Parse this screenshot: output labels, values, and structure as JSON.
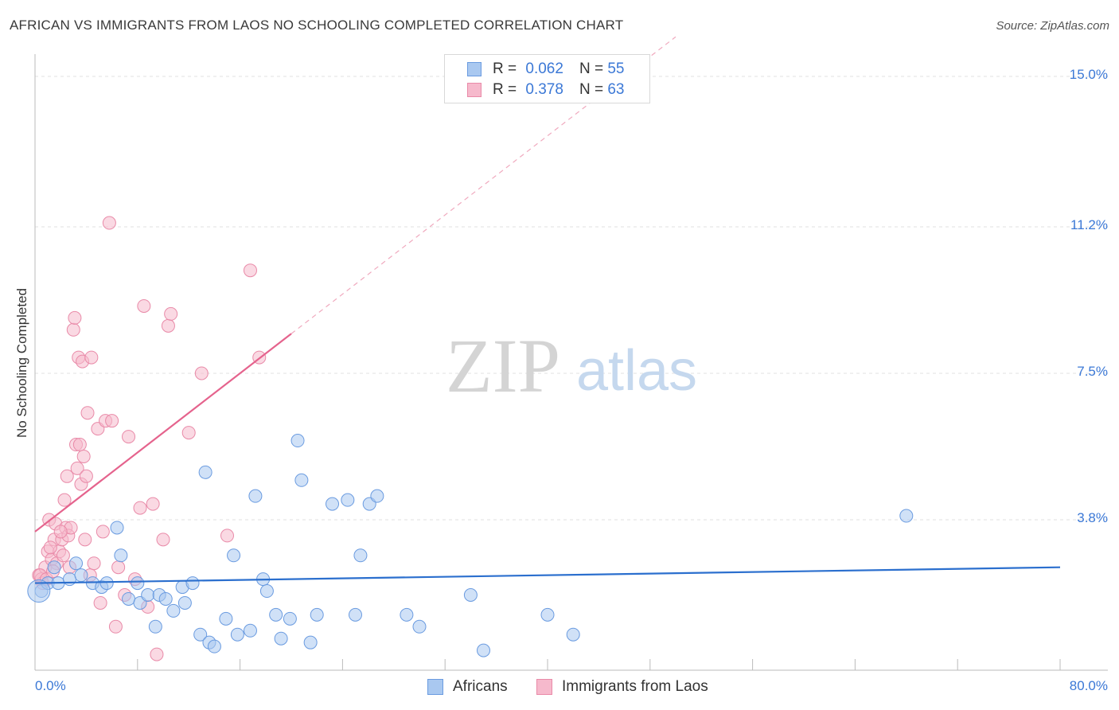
{
  "title": "AFRICAN VS IMMIGRANTS FROM LAOS NO SCHOOLING COMPLETED CORRELATION CHART",
  "source": "Source: ZipAtlas.com",
  "watermark": {
    "zip": "ZIP",
    "atlas": "atlas"
  },
  "legend": {
    "africans": {
      "r_label": "R =",
      "r_value": "0.062",
      "n_label": "N =",
      "n_value": "55"
    },
    "laos": {
      "r_label": "R =",
      "r_value": "0.378",
      "n_label": "N =",
      "n_value": "63"
    }
  },
  "colors": {
    "africans_fill": "#a9c8f0",
    "africans_stroke": "#6a9be0",
    "africans_line": "#2b6fce",
    "laos_fill": "#f6b9cc",
    "laos_stroke": "#e98aa8",
    "laos_line": "#e5638d",
    "tick_text": "#3b78d6",
    "grid": "#e2e2e2"
  },
  "chart_data": {
    "type": "scatter",
    "xlabel": "",
    "ylabel": "No Schooling Completed",
    "xlim": [
      0,
      80
    ],
    "ylim": [
      0,
      15
    ],
    "x_tick_labels": [
      "0.0%",
      "80.0%"
    ],
    "y_tick_labels": [
      "3.8%",
      "7.5%",
      "11.2%",
      "15.0%"
    ],
    "y_ticks": [
      3.8,
      7.5,
      11.2,
      15.0
    ],
    "grid": true,
    "series": [
      {
        "name": "Africans",
        "trend": {
          "x0": 0,
          "y0": 2.2,
          "x1": 80,
          "y1": 2.6
        },
        "points": [
          [
            0.5,
            2.0
          ],
          [
            1.0,
            2.2
          ],
          [
            1.5,
            2.6
          ],
          [
            1.8,
            2.2
          ],
          [
            2.7,
            2.3
          ],
          [
            3.2,
            2.7
          ],
          [
            3.6,
            2.4
          ],
          [
            4.5,
            2.2
          ],
          [
            5.2,
            2.1
          ],
          [
            5.6,
            2.2
          ],
          [
            6.4,
            3.6
          ],
          [
            6.7,
            2.9
          ],
          [
            7.3,
            1.8
          ],
          [
            8.0,
            2.2
          ],
          [
            8.2,
            1.7
          ],
          [
            8.8,
            1.9
          ],
          [
            9.4,
            1.1
          ],
          [
            9.7,
            1.9
          ],
          [
            10.2,
            1.8
          ],
          [
            10.8,
            1.5
          ],
          [
            11.5,
            2.1
          ],
          [
            11.7,
            1.7
          ],
          [
            12.3,
            2.2
          ],
          [
            12.9,
            0.9
          ],
          [
            13.3,
            5.0
          ],
          [
            13.6,
            0.7
          ],
          [
            14.0,
            0.6
          ],
          [
            14.9,
            1.3
          ],
          [
            15.5,
            2.9
          ],
          [
            15.8,
            0.9
          ],
          [
            16.8,
            1.0
          ],
          [
            17.2,
            4.4
          ],
          [
            17.8,
            2.3
          ],
          [
            18.1,
            2.0
          ],
          [
            18.8,
            1.4
          ],
          [
            19.2,
            0.8
          ],
          [
            19.9,
            1.3
          ],
          [
            20.5,
            5.8
          ],
          [
            20.8,
            4.8
          ],
          [
            21.5,
            0.7
          ],
          [
            22.0,
            1.4
          ],
          [
            23.2,
            4.2
          ],
          [
            24.4,
            4.3
          ],
          [
            25.0,
            1.4
          ],
          [
            25.4,
            2.9
          ],
          [
            26.1,
            4.2
          ],
          [
            26.7,
            4.4
          ],
          [
            29.0,
            1.4
          ],
          [
            30.0,
            1.1
          ],
          [
            34.0,
            1.9
          ],
          [
            35.0,
            0.5
          ],
          [
            40.0,
            1.4
          ],
          [
            42.0,
            0.9
          ],
          [
            68.0,
            3.9
          ],
          [
            0.3,
            2.0
          ]
        ]
      },
      {
        "name": "Immigrants from Laos",
        "trend": {
          "x0": 0,
          "y0": 3.5,
          "x1": 20,
          "y1": 8.5,
          "x_ext": 50,
          "y_ext": 16
        },
        "points": [
          [
            0.3,
            2.4
          ],
          [
            0.5,
            2.3
          ],
          [
            0.6,
            2.2
          ],
          [
            0.8,
            2.6
          ],
          [
            1.0,
            3.0
          ],
          [
            1.1,
            3.8
          ],
          [
            1.3,
            2.8
          ],
          [
            1.5,
            3.3
          ],
          [
            1.6,
            3.7
          ],
          [
            1.7,
            2.7
          ],
          [
            1.9,
            3.0
          ],
          [
            2.1,
            3.3
          ],
          [
            2.2,
            2.9
          ],
          [
            2.3,
            4.3
          ],
          [
            2.4,
            3.6
          ],
          [
            2.5,
            4.9
          ],
          [
            2.6,
            3.4
          ],
          [
            2.7,
            2.6
          ],
          [
            2.8,
            3.6
          ],
          [
            3.0,
            8.6
          ],
          [
            3.1,
            8.9
          ],
          [
            3.2,
            5.7
          ],
          [
            3.3,
            5.1
          ],
          [
            3.4,
            7.9
          ],
          [
            3.5,
            5.7
          ],
          [
            3.6,
            4.7
          ],
          [
            3.7,
            7.8
          ],
          [
            3.8,
            5.4
          ],
          [
            3.9,
            3.3
          ],
          [
            4.0,
            4.9
          ],
          [
            4.1,
            6.5
          ],
          [
            4.3,
            2.4
          ],
          [
            4.4,
            7.9
          ],
          [
            4.6,
            2.7
          ],
          [
            4.9,
            6.1
          ],
          [
            5.1,
            1.7
          ],
          [
            5.3,
            3.5
          ],
          [
            5.5,
            6.3
          ],
          [
            5.8,
            11.3
          ],
          [
            6.0,
            6.3
          ],
          [
            6.3,
            1.1
          ],
          [
            6.5,
            2.6
          ],
          [
            7.0,
            1.9
          ],
          [
            7.3,
            5.9
          ],
          [
            7.8,
            2.3
          ],
          [
            8.2,
            4.1
          ],
          [
            8.5,
            9.2
          ],
          [
            8.8,
            1.6
          ],
          [
            9.2,
            4.2
          ],
          [
            9.5,
            0.4
          ],
          [
            10.0,
            3.3
          ],
          [
            10.4,
            8.7
          ],
          [
            10.6,
            9.0
          ],
          [
            12.0,
            6.0
          ],
          [
            13.0,
            7.5
          ],
          [
            15.0,
            3.4
          ],
          [
            16.8,
            10.1
          ],
          [
            17.5,
            7.9
          ],
          [
            0.4,
            2.4
          ],
          [
            0.9,
            2.3
          ],
          [
            1.4,
            2.5
          ],
          [
            1.2,
            3.1
          ],
          [
            2.0,
            3.5
          ]
        ]
      }
    ]
  },
  "bottom_legend": {
    "africans": "Africans",
    "laos": "Immigrants from Laos"
  }
}
